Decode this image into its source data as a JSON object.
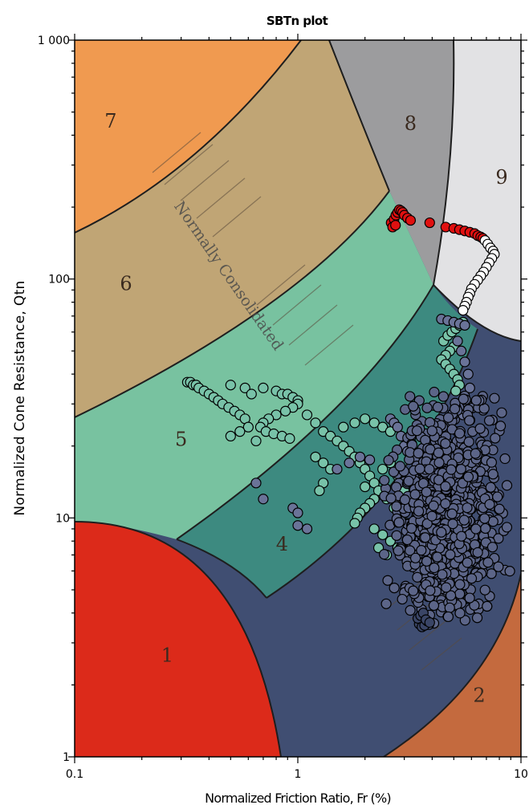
{
  "chart_data": {
    "type": "scatter",
    "title": "SBTn plot",
    "xlabel": "Normalized Friction Ratio, Fr (%)",
    "ylabel": "Normalized Cone Resistance, Qtn",
    "x_scale": "log",
    "y_scale": "log",
    "xlim": [
      0.1,
      10
    ],
    "ylim": [
      1,
      1000
    ],
    "x_ticks": [
      {
        "value": 0.1,
        "label": "0.1"
      },
      {
        "value": 1,
        "label": "1"
      },
      {
        "value": 10,
        "label": "10"
      }
    ],
    "y_ticks": [
      {
        "value": 1,
        "label": "1"
      },
      {
        "value": 10,
        "label": "10"
      },
      {
        "value": 100,
        "label": "100"
      },
      {
        "value": 1000,
        "label": "1 000"
      }
    ],
    "grid": false,
    "legend": "none",
    "zone_labels": [
      {
        "label": "1",
        "x": 0.26,
        "y": 2.5
      },
      {
        "label": "2",
        "x": 6.5,
        "y": 1.7
      },
      {
        "label": "4",
        "x": 0.85,
        "y": 7.3
      },
      {
        "label": "5",
        "x": 0.3,
        "y": 20
      },
      {
        "label": "6",
        "x": 0.17,
        "y": 90
      },
      {
        "label": "7",
        "x": 0.145,
        "y": 430
      },
      {
        "label": "8",
        "x": 3.2,
        "y": 420
      },
      {
        "label": "9",
        "x": 8.2,
        "y": 250
      }
    ],
    "annotation": {
      "text": "Normally Consolidated",
      "x": 0.75,
      "y": 80
    },
    "series": [
      {
        "color": "#e01010",
        "points": [
          [
            2.62,
            172
          ],
          [
            2.7,
            178
          ],
          [
            2.75,
            185
          ],
          [
            2.8,
            190
          ],
          [
            2.85,
            195
          ],
          [
            2.9,
            193
          ],
          [
            2.95,
            190
          ],
          [
            3.0,
            185
          ],
          [
            3.1,
            180
          ],
          [
            3.2,
            176
          ],
          [
            3.9,
            172
          ],
          [
            4.6,
            165
          ],
          [
            5.0,
            163
          ],
          [
            5.3,
            161
          ],
          [
            5.6,
            159
          ],
          [
            5.9,
            157
          ],
          [
            6.2,
            155
          ],
          [
            6.4,
            152
          ],
          [
            6.6,
            150
          ],
          [
            6.75,
            148
          ],
          [
            2.66,
            165
          ],
          [
            2.74,
            168
          ]
        ]
      },
      {
        "color": "#ffffff",
        "points": [
          [
            6.9,
            145
          ],
          [
            7.1,
            140
          ],
          [
            7.3,
            135
          ],
          [
            7.5,
            131
          ],
          [
            7.6,
            127
          ],
          [
            7.4,
            122
          ],
          [
            7.2,
            117
          ],
          [
            7.0,
            112
          ],
          [
            6.8,
            107
          ],
          [
            6.6,
            103
          ],
          [
            6.4,
            99
          ],
          [
            6.2,
            95
          ],
          [
            6.0,
            91
          ],
          [
            5.9,
            87
          ],
          [
            5.8,
            84
          ],
          [
            5.7,
            80
          ],
          [
            5.6,
            77
          ],
          [
            5.5,
            74
          ]
        ]
      },
      {
        "color": "#78c2a8",
        "points": [
          [
            0.32,
            37
          ],
          [
            0.33,
            37
          ],
          [
            0.34,
            36
          ],
          [
            0.35,
            36
          ],
          [
            0.36,
            35
          ],
          [
            0.38,
            34
          ],
          [
            0.4,
            33
          ],
          [
            0.42,
            32
          ],
          [
            0.44,
            31
          ],
          [
            0.46,
            30
          ],
          [
            0.49,
            29
          ],
          [
            0.52,
            28
          ],
          [
            0.55,
            27
          ],
          [
            0.58,
            26
          ],
          [
            0.5,
            36
          ],
          [
            0.58,
            35
          ],
          [
            0.62,
            33
          ],
          [
            0.7,
            35
          ],
          [
            0.8,
            34
          ],
          [
            0.85,
            33
          ],
          [
            0.9,
            33
          ],
          [
            0.95,
            32
          ],
          [
            1.0,
            31
          ],
          [
            1.0,
            30
          ],
          [
            0.95,
            29
          ],
          [
            0.88,
            28
          ],
          [
            0.8,
            27
          ],
          [
            0.74,
            26
          ],
          [
            0.7,
            25
          ],
          [
            0.68,
            24
          ],
          [
            0.72,
            23
          ],
          [
            0.78,
            22.5
          ],
          [
            0.85,
            22
          ],
          [
            0.92,
            21.5
          ],
          [
            0.6,
            24
          ],
          [
            0.55,
            23
          ],
          [
            0.5,
            22
          ],
          [
            0.65,
            21
          ],
          [
            1.1,
            27
          ],
          [
            1.2,
            25
          ],
          [
            1.3,
            23
          ],
          [
            1.4,
            22
          ],
          [
            1.5,
            21
          ],
          [
            1.6,
            20
          ],
          [
            1.7,
            19
          ],
          [
            1.8,
            18
          ],
          [
            1.9,
            17
          ],
          [
            2.0,
            16
          ],
          [
            2.1,
            15
          ],
          [
            2.2,
            14
          ],
          [
            2.3,
            13
          ],
          [
            2.2,
            12
          ],
          [
            2.1,
            11.5
          ],
          [
            2.0,
            11
          ],
          [
            1.9,
            10.5
          ],
          [
            1.85,
            10
          ],
          [
            1.8,
            9.5
          ],
          [
            2.0,
            13.5
          ],
          [
            2.5,
            12
          ],
          [
            2.7,
            11
          ],
          [
            2.9,
            10
          ],
          [
            3.1,
            9.5
          ],
          [
            3.3,
            9
          ],
          [
            3.5,
            8.5
          ],
          [
            3.7,
            8.2
          ],
          [
            2.4,
            16
          ],
          [
            2.6,
            17
          ],
          [
            2.8,
            15
          ],
          [
            1.6,
            24
          ],
          [
            1.8,
            25
          ],
          [
            2.0,
            26
          ],
          [
            2.2,
            25
          ],
          [
            2.4,
            24
          ],
          [
            2.6,
            23
          ],
          [
            3.0,
            13
          ],
          [
            3.2,
            12
          ],
          [
            3.4,
            11
          ],
          [
            1.2,
            18
          ],
          [
            1.3,
            17
          ],
          [
            1.4,
            16
          ],
          [
            1.3,
            14
          ],
          [
            1.25,
            13
          ],
          [
            2.2,
            9
          ],
          [
            2.4,
            8.5
          ],
          [
            2.6,
            8
          ],
          [
            2.8,
            7.5
          ],
          [
            3.0,
            7.2
          ],
          [
            2.5,
            7
          ],
          [
            2.3,
            7.5
          ],
          [
            4.5,
            55
          ],
          [
            4.7,
            58
          ],
          [
            4.9,
            60
          ],
          [
            5.1,
            62
          ],
          [
            5.3,
            64
          ],
          [
            5.5,
            66
          ],
          [
            5.0,
            52
          ],
          [
            4.8,
            50
          ],
          [
            4.6,
            48
          ],
          [
            4.4,
            46
          ],
          [
            4.6,
            44
          ],
          [
            4.8,
            42
          ],
          [
            5.0,
            40
          ],
          [
            5.2,
            38
          ],
          [
            5.3,
            36
          ],
          [
            5.1,
            34
          ]
        ]
      },
      {
        "color": "#6a7398",
        "points": [
          [
            0.65,
            14
          ],
          [
            0.7,
            12
          ],
          [
            0.95,
            11
          ],
          [
            1.0,
            10.5
          ],
          [
            1.1,
            9
          ],
          [
            1.0,
            9.3
          ],
          [
            1.5,
            16
          ],
          [
            1.7,
            17
          ],
          [
            1.9,
            18
          ],
          [
            2.1,
            17.5
          ],
          [
            2.6,
            26
          ],
          [
            2.7,
            25
          ],
          [
            2.8,
            24
          ],
          [
            2.9,
            22
          ],
          [
            3.0,
            20
          ],
          [
            3.1,
            19
          ],
          [
            4.4,
            68
          ],
          [
            4.7,
            67
          ],
          [
            5.0,
            66
          ],
          [
            5.3,
            65
          ],
          [
            5.6,
            64
          ],
          [
            5.2,
            55
          ],
          [
            5.4,
            50
          ],
          [
            5.6,
            45
          ],
          [
            5.8,
            40
          ],
          [
            5.9,
            35
          ],
          [
            5.7,
            30
          ],
          [
            5.5,
            27
          ]
        ]
      },
      {
        "color": "#5c6588",
        "cluster": {
          "x_range": [
            2.2,
            9.5
          ],
          "y_range": [
            3.5,
            35
          ],
          "count": 950,
          "seed": 7
        }
      },
      {
        "color": "#3a4566",
        "points": [
          [
            3.5,
            3.6
          ],
          [
            3.6,
            3.5
          ],
          [
            3.7,
            3.55
          ],
          [
            3.8,
            3.7
          ],
          [
            3.45,
            3.8
          ],
          [
            3.55,
            3.9
          ],
          [
            3.65,
            4.0
          ],
          [
            3.75,
            3.75
          ],
          [
            3.9,
            3.65
          ]
        ]
      }
    ]
  }
}
